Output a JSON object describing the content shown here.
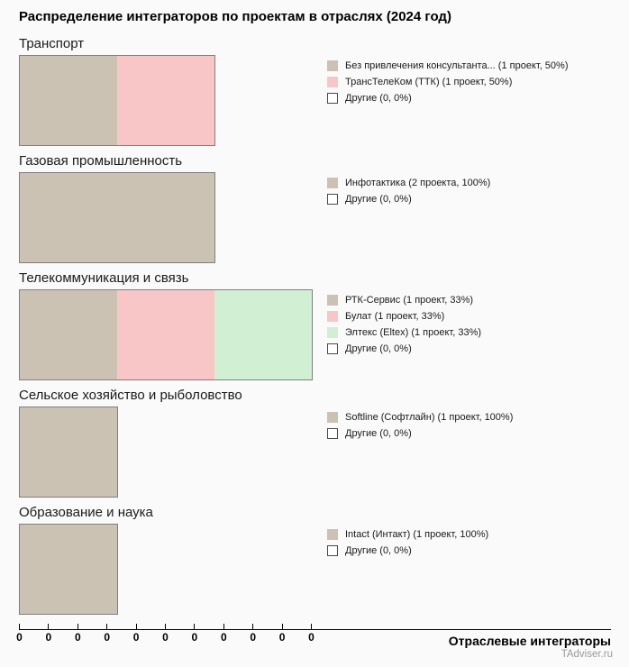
{
  "page": {
    "title": "Распределение интеграторов по проектам в отраслях (2024 год)",
    "background": "#fafafa"
  },
  "colors": {
    "tan": "#cbc2b4",
    "pink": "#f9c6c8",
    "green": "#d1f0d3",
    "empty": "#ffffff",
    "bar_border": "#7f7f7f",
    "watermark_gray": "#9a9a9a"
  },
  "axis": {
    "tick_labels": [
      "0",
      "0",
      "0",
      "0",
      "0",
      "0",
      "0",
      "0",
      "0",
      "0",
      "0"
    ],
    "label": "Отраслевые интеграторы",
    "watermark": "TAdviser.ru"
  },
  "chart_data": {
    "type": "bar",
    "title": "Распределение интеграторов по проектам в отраслях (2024 год)",
    "xlabel": "Отраслевые интеграторы",
    "source": "TAdviser.ru",
    "orientation": "horizontal",
    "max_projects": 3,
    "x_tick_labels": [
      "0",
      "0",
      "0",
      "0",
      "0",
      "0",
      "0",
      "0",
      "0",
      "0",
      "0"
    ],
    "sections": [
      {
        "category": "Транспорт",
        "total_projects": 2,
        "segments": [
          {
            "label": "Без привлечения консультанта... (1 проект, 50%)",
            "projects": 1,
            "percent": 50,
            "color_key": "tan"
          },
          {
            "label": "ТрансТелеКом (ТТК) (1 проект, 50%)",
            "projects": 1,
            "percent": 50,
            "color_key": "pink"
          },
          {
            "label": "Другие (0, 0%)",
            "projects": 0,
            "percent": 0,
            "color_key": "empty"
          }
        ]
      },
      {
        "category": "Газовая промышленность",
        "total_projects": 2,
        "segments": [
          {
            "label": "Инфотактика (2 проекта, 100%)",
            "projects": 2,
            "percent": 100,
            "color_key": "tan"
          },
          {
            "label": "Другие (0, 0%)",
            "projects": 0,
            "percent": 0,
            "color_key": "empty"
          }
        ]
      },
      {
        "category": "Телекоммуникация и связь",
        "total_projects": 3,
        "segments": [
          {
            "label": "РТК-Сервис (1 проект, 33%)",
            "projects": 1,
            "percent": 33,
            "color_key": "tan"
          },
          {
            "label": "Булат (1 проект, 33%)",
            "projects": 1,
            "percent": 33,
            "color_key": "pink"
          },
          {
            "label": "Элтекс (Eltex) (1 проект, 33%)",
            "projects": 1,
            "percent": 33,
            "color_key": "green"
          },
          {
            "label": "Другие (0, 0%)",
            "projects": 0,
            "percent": 0,
            "color_key": "empty"
          }
        ]
      },
      {
        "category": "Сельское хозяйство и рыболовство",
        "total_projects": 1,
        "segments": [
          {
            "label": "Softline (Софтлайн) (1 проект, 100%)",
            "projects": 1,
            "percent": 100,
            "color_key": "tan"
          },
          {
            "label": "Другие (0, 0%)",
            "projects": 0,
            "percent": 0,
            "color_key": "empty"
          }
        ]
      },
      {
        "category": "Образование и наука",
        "total_projects": 1,
        "segments": [
          {
            "label": "Intact (Интакт) (1 проект, 100%)",
            "projects": 1,
            "percent": 100,
            "color_key": "tan"
          },
          {
            "label": "Другие (0, 0%)",
            "projects": 0,
            "percent": 0,
            "color_key": "empty"
          }
        ]
      }
    ]
  }
}
